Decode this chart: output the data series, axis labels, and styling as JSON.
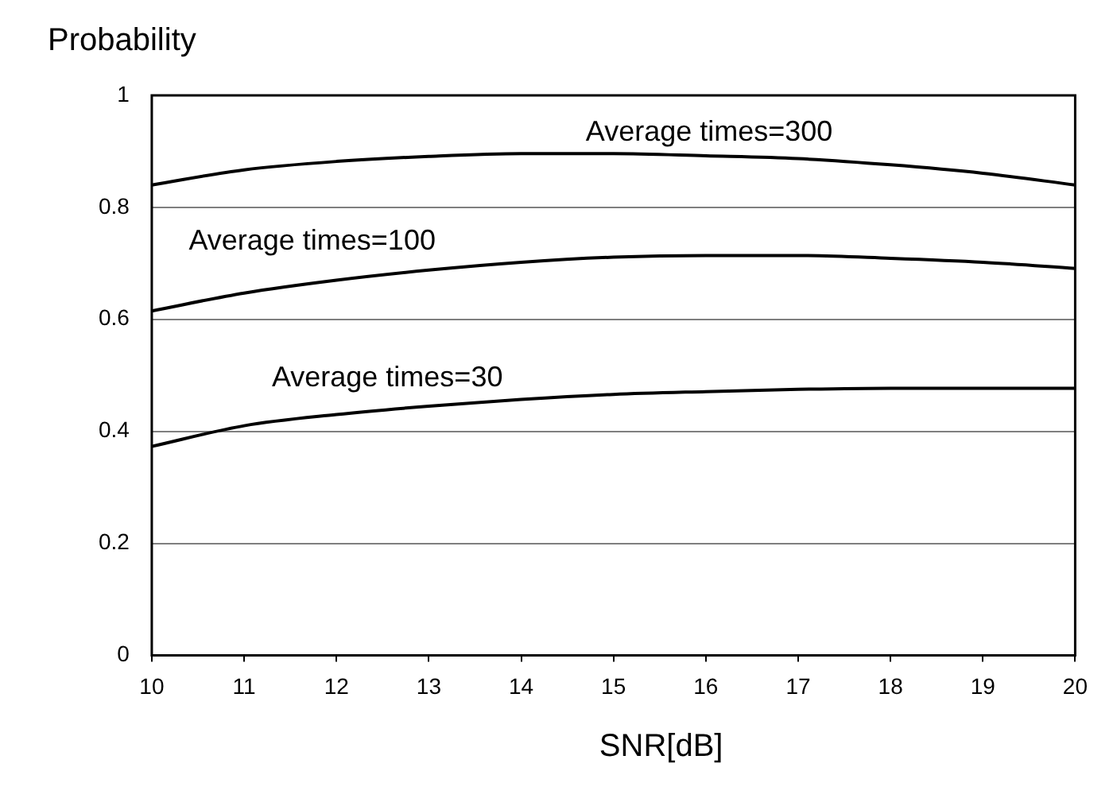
{
  "chart_data": {
    "type": "line",
    "xlabel": "SNR[dB]",
    "ylabel": "Probability",
    "x": [
      10,
      11,
      12,
      13,
      14,
      15,
      16,
      17,
      18,
      19,
      20
    ],
    "series": [
      {
        "name": "Average times=300",
        "color": "#000000",
        "values": [
          0.84,
          0.867,
          0.882,
          0.891,
          0.896,
          0.896,
          0.892,
          0.887,
          0.876,
          0.861,
          0.84
        ]
      },
      {
        "name": "Average times=100",
        "color": "#000000",
        "values": [
          0.615,
          0.647,
          0.67,
          0.688,
          0.702,
          0.711,
          0.714,
          0.714,
          0.709,
          0.702,
          0.691
        ]
      },
      {
        "name": "Average times=30",
        "color": "#000000",
        "values": [
          0.373,
          0.41,
          0.43,
          0.445,
          0.457,
          0.466,
          0.471,
          0.475,
          0.477,
          0.477,
          0.477
        ]
      }
    ],
    "xlim": [
      10,
      20
    ],
    "xticks": [
      10,
      11,
      12,
      13,
      14,
      15,
      16,
      17,
      18,
      19,
      20
    ],
    "ylim": [
      0,
      1
    ],
    "yticks": [
      0,
      0.2,
      0.4,
      0.6,
      0.8,
      1
    ],
    "grid": "y",
    "legend": false,
    "marker": "none",
    "line_style": "solid"
  }
}
